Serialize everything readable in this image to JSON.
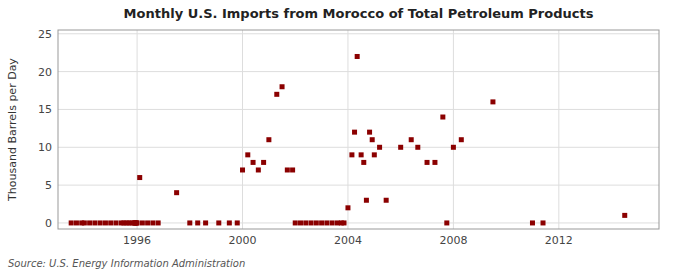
{
  "chart_data": {
    "type": "scatter",
    "title": "Monthly U.S. Imports from Morocco of Total Petroleum Products",
    "y_label": "Thousand Barrels per Day",
    "annotations": [
      "Source: U.S. Energy Information Administration"
    ],
    "color": "#8b0000",
    "marker": "square",
    "grid": true,
    "xlim": [
      1993.0,
      2015.8
    ],
    "ylim": [
      -0.8,
      25.5
    ],
    "xticks": [
      1996,
      2000,
      2004,
      2008,
      2012
    ],
    "yticks": [
      0,
      5,
      10,
      15,
      20,
      25
    ],
    "x": [
      1993.5,
      1993.7,
      1993.9,
      1994.0,
      1994.2,
      1994.4,
      1994.6,
      1994.8,
      1995.0,
      1995.2,
      1995.4,
      1995.5,
      1995.6,
      1995.7,
      1995.8,
      1995.9,
      1995.92,
      1995.95,
      1995.97,
      1996.0,
      1996.1,
      1996.2,
      1996.4,
      1996.6,
      1996.8,
      1997.5,
      1998.0,
      1998.3,
      1998.6,
      1999.1,
      1999.5,
      1999.8,
      2000.0,
      2000.2,
      2000.4,
      2000.6,
      2000.8,
      2001.0,
      2001.3,
      2001.5,
      2001.7,
      2001.9,
      2002.0,
      2002.2,
      2002.4,
      2002.6,
      2002.8,
      2003.0,
      2003.2,
      2003.4,
      2003.6,
      2003.75,
      2003.85,
      2004.0,
      2004.15,
      2004.25,
      2004.35,
      2004.5,
      2004.6,
      2004.7,
      2004.82,
      2004.92,
      2005.0,
      2005.2,
      2005.45,
      2006.0,
      2006.4,
      2006.65,
      2007.0,
      2007.3,
      2007.6,
      2007.75,
      2008.0,
      2008.3,
      2009.5,
      2011.0,
      2011.4,
      2014.5
    ],
    "values": [
      0,
      0,
      0,
      0,
      0,
      0,
      0,
      0,
      0,
      0,
      0,
      0,
      0,
      0,
      0,
      0,
      0,
      0,
      0,
      0,
      6,
      0,
      0,
      0,
      0,
      4,
      0,
      0,
      0,
      0,
      0,
      0,
      7,
      9,
      8,
      7,
      8,
      11,
      17,
      18,
      7,
      7,
      0,
      0,
      0,
      0,
      0,
      0,
      0,
      0,
      0,
      0,
      0,
      2,
      9,
      12,
      22,
      9,
      8,
      3,
      12,
      11,
      9,
      10,
      3,
      10,
      11,
      10,
      8,
      8,
      14,
      0,
      10,
      11,
      16,
      0,
      0,
      1
    ]
  }
}
